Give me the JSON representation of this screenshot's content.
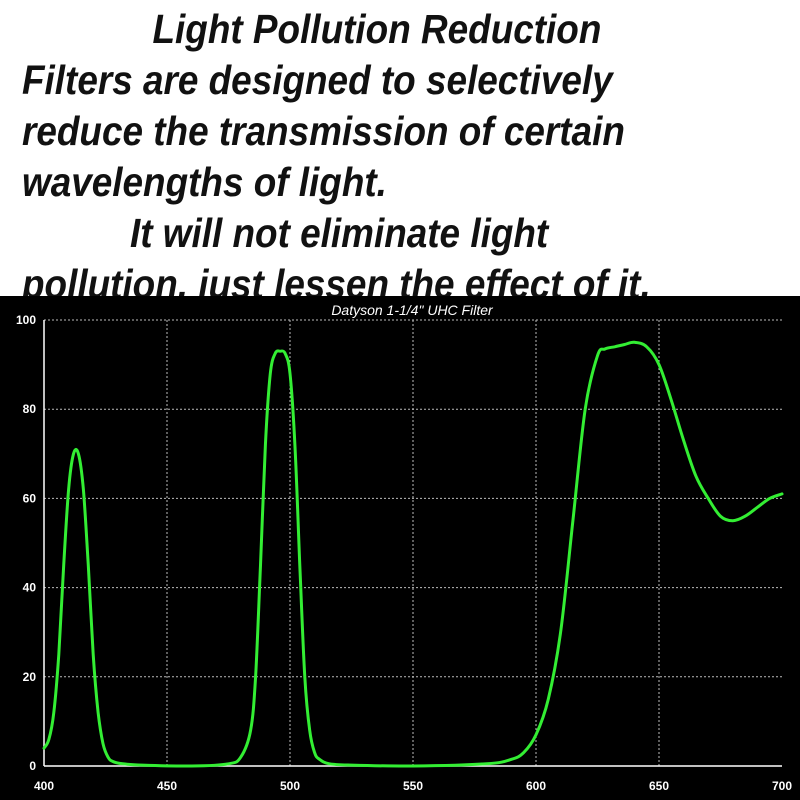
{
  "caption": {
    "paragraph_1": "Light Pollution Reduction Filters are designed to selectively reduce the transmission of certain wavelengths of light.",
    "paragraph_2": "It will not eliminate light pollution, just lessen the effect of it."
  },
  "colors": {
    "background": "#000000",
    "line": "#33ee33",
    "grid": "#bbbbbb",
    "text": "#ffffff"
  },
  "chart_data": {
    "type": "line",
    "title": "Datyson 1-1/4\" UHC Filter",
    "xlabel": "",
    "ylabel": "",
    "xlim": [
      400,
      700
    ],
    "ylim": [
      0,
      100
    ],
    "x_ticks": [
      "400",
      "450",
      "500",
      "550",
      "600",
      "650",
      "700"
    ],
    "y_ticks": [
      "0",
      "20",
      "40",
      "60",
      "80",
      "100"
    ],
    "grid": true,
    "series": [
      {
        "x": [
          400,
          402,
          404,
          406,
          408,
          410,
          412,
          414,
          416,
          418,
          420,
          422,
          424,
          426,
          428,
          432,
          440,
          460,
          475,
          480,
          484,
          486,
          488,
          490,
          492,
          494,
          496,
          498,
          500,
          502,
          504,
          506,
          508,
          510,
          512,
          516,
          525,
          550,
          580,
          590,
          595,
          600,
          605,
          610,
          615,
          620,
          625,
          628,
          632,
          636,
          640,
          645,
          650,
          655,
          660,
          665,
          670,
          675,
          680,
          685,
          690,
          695,
          700
        ],
        "y": [
          4,
          6,
          12,
          25,
          45,
          62,
          70,
          70,
          62,
          45,
          25,
          12,
          5,
          2,
          1,
          0.5,
          0.2,
          0,
          0.5,
          2,
          8,
          20,
          45,
          72,
          88,
          92.5,
          93,
          92.5,
          88,
          72,
          45,
          20,
          8,
          3,
          1.5,
          0.5,
          0.2,
          0,
          0.5,
          1.5,
          3,
          7,
          15,
          30,
          55,
          80,
          92,
          93.5,
          94,
          94.5,
          95,
          94,
          90,
          82,
          73,
          65,
          60,
          56,
          55,
          56,
          58,
          60,
          61
        ]
      }
    ]
  }
}
